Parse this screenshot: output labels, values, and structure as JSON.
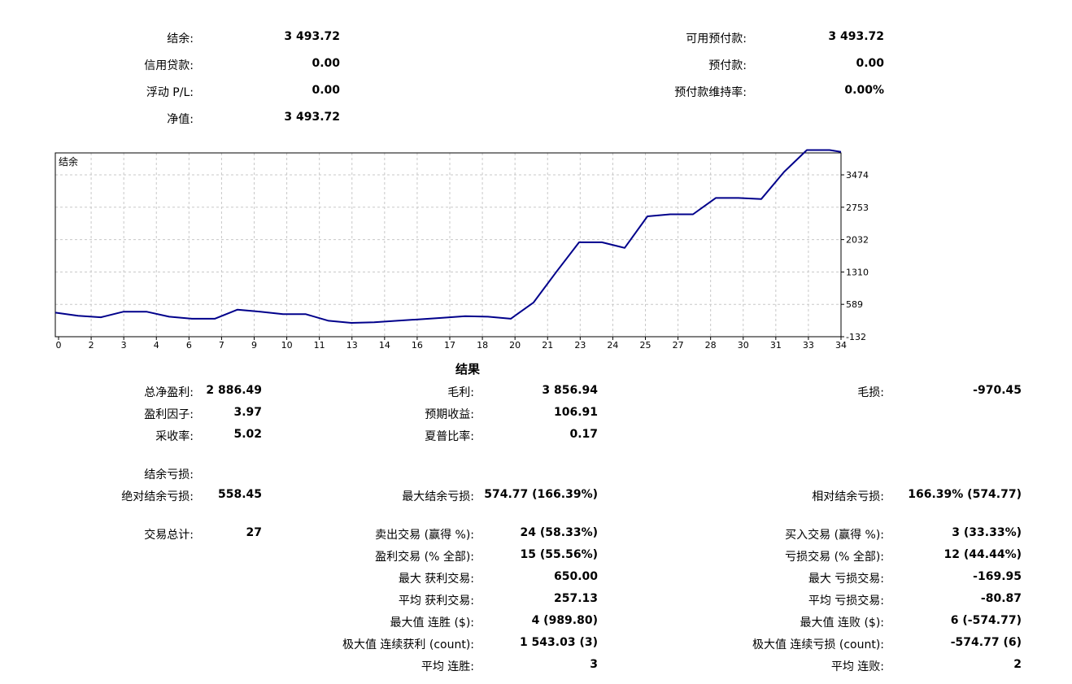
{
  "account": {
    "balance_label": "结余:",
    "balance_value": "3 493.72",
    "credit_label": "信用贷款:",
    "credit_value": "0.00",
    "floating_label": "浮动 P/L:",
    "floating_value": "0.00",
    "equity_label": "净值:",
    "equity_value": "3 493.72",
    "free_margin_label": "可用预付款:",
    "free_margin_value": "3 493.72",
    "margin_label": "预付款:",
    "margin_value": "0.00",
    "margin_level_label": "预付款维持率:",
    "margin_level_value": "0.00%"
  },
  "chart_data": {
    "type": "line",
    "legend": "结余",
    "x_ticks": [
      "0",
      "2",
      "3",
      "4",
      "6",
      "7",
      "9",
      "10",
      "11",
      "13",
      "14",
      "16",
      "17",
      "18",
      "20",
      "21",
      "23",
      "24",
      "25",
      "27",
      "28",
      "30",
      "31",
      "33",
      "34"
    ],
    "y_ticks": [
      "3474",
      "2753",
      "2032",
      "1310",
      "589",
      "-132"
    ],
    "ylim": [
      -132,
      3474
    ],
    "xlim": [
      0,
      34.5
    ],
    "grid": true,
    "color": "#00008b",
    "series": [
      {
        "points": [
          [
            0,
            340
          ],
          [
            1,
            280
          ],
          [
            2,
            250
          ],
          [
            3,
            360
          ],
          [
            4,
            360
          ],
          [
            5,
            260
          ],
          [
            6,
            220
          ],
          [
            7,
            220
          ],
          [
            8,
            400
          ],
          [
            9,
            360
          ],
          [
            10,
            310
          ],
          [
            11,
            310
          ],
          [
            12,
            180
          ],
          [
            13,
            140
          ],
          [
            14,
            150
          ],
          [
            15,
            180
          ],
          [
            16,
            210
          ],
          [
            17,
            240
          ],
          [
            18,
            270
          ],
          [
            19,
            260
          ],
          [
            20,
            220
          ],
          [
            21,
            540
          ],
          [
            22,
            1140
          ],
          [
            23,
            1720
          ],
          [
            24,
            1720
          ],
          [
            25,
            1610
          ],
          [
            26,
            2230
          ],
          [
            27,
            2270
          ],
          [
            28,
            2270
          ],
          [
            29,
            2590
          ],
          [
            30,
            2590
          ],
          [
            31,
            2570
          ],
          [
            32,
            3100
          ],
          [
            33,
            3530
          ],
          [
            34,
            3530
          ],
          [
            34.5,
            3494
          ]
        ]
      }
    ]
  },
  "results": {
    "title": "结果",
    "net_profit_label": "总净盈利:",
    "net_profit_value": "2 886.49",
    "gross_profit_label": "毛利:",
    "gross_profit_value": "3 856.94",
    "gross_loss_label": "毛损:",
    "gross_loss_value": "-970.45",
    "profit_factor_label": "盈利因子:",
    "profit_factor_value": "3.97",
    "expected_payoff_label": "预期收益:",
    "expected_payoff_value": "106.91",
    "recovery_factor_label": "采收率:",
    "recovery_factor_value": "5.02",
    "sharpe_label": "夏普比率:",
    "sharpe_value": "0.17",
    "balance_drawdown_label": "结余亏损:",
    "abs_drawdown_label": "绝对结余亏损:",
    "abs_drawdown_value": "558.45",
    "max_drawdown_label": "最大结余亏损:",
    "max_drawdown_value": "574.77 (166.39%)",
    "rel_drawdown_label": "相对结余亏损:",
    "rel_drawdown_value": "166.39% (574.77)",
    "total_trades_label": "交易总计:",
    "total_trades_value": "27",
    "short_trades_label": "卖出交易 (赢得 %):",
    "short_trades_value": "24 (58.33%)",
    "long_trades_label": "买入交易 (赢得 %):",
    "long_trades_value": "3 (33.33%)",
    "profit_trades_label": "盈利交易 (% 全部):",
    "profit_trades_value": "15 (55.56%)",
    "loss_trades_label": "亏损交易 (% 全部):",
    "loss_trades_value": "12 (44.44%)",
    "largest_profit_label": "最大 获利交易:",
    "largest_profit_value": "650.00",
    "largest_loss_label": "最大 亏损交易:",
    "largest_loss_value": "-169.95",
    "avg_profit_label": "平均 获利交易:",
    "avg_profit_value": "257.13",
    "avg_loss_label": "平均 亏损交易:",
    "avg_loss_value": "-80.87",
    "max_cons_wins_label": "最大值 连胜 ($):",
    "max_cons_wins_value": "4 (989.80)",
    "max_cons_losses_label": "最大值 连败 ($):",
    "max_cons_losses_value": "6 (-574.77)",
    "max_cons_profit_label": "极大值 连续获利 (count):",
    "max_cons_profit_value": "1 543.03 (3)",
    "max_cons_loss_label": "极大值 连续亏损 (count):",
    "max_cons_loss_value": "-574.77 (6)",
    "avg_cons_wins_label": "平均 连胜:",
    "avg_cons_wins_value": "3",
    "avg_cons_losses_label": "平均 连败:",
    "avg_cons_losses_value": "2"
  }
}
